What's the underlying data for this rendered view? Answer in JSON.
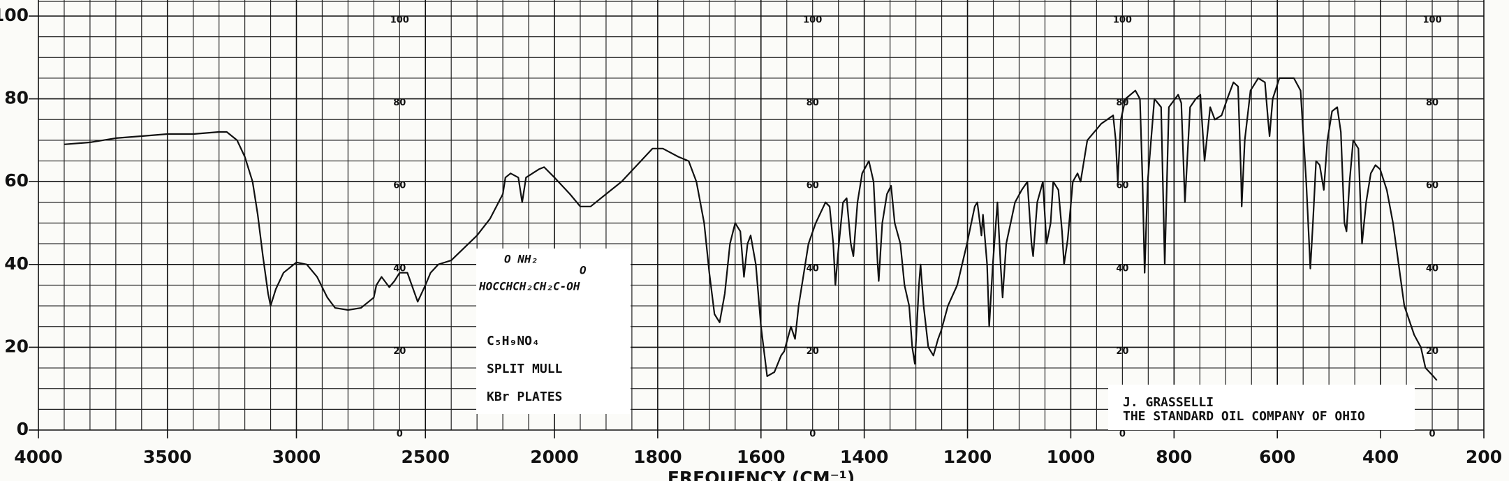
{
  "chart_data": {
    "type": "line",
    "x_label": "FREQUENCY (CM⁻¹)",
    "color": "#111111",
    "grid": true,
    "xlim": [
      4000,
      200
    ],
    "xticks": [
      4000,
      3500,
      3000,
      2500,
      2000,
      1800,
      1600,
      1400,
      1200,
      1000,
      800,
      600,
      400,
      200
    ],
    "ylim": [
      0,
      100
    ],
    "yticks": [
      0,
      20,
      40,
      60,
      80,
      100
    ],
    "inner_scale_columns": [
      2600,
      1500,
      900,
      300
    ],
    "annotations": {
      "structure_top": "O NH₂",
      "structure_top_right": "O",
      "structure": "HOCCHCH₂CH₂C-OH",
      "formula": "C₅H₉NO₄",
      "method": "SPLIT MULL",
      "plates": "KBr PLATES",
      "author": "J. GRASSELLI",
      "company": "THE STANDARD OIL COMPANY OF OHIO"
    },
    "x": [
      3900,
      3800,
      3700,
      3600,
      3500,
      3400,
      3300,
      3270,
      3230,
      3200,
      3170,
      3150,
      3130,
      3110,
      3100,
      3080,
      3050,
      3000,
      2960,
      2920,
      2880,
      2850,
      2800,
      2750,
      2700,
      2690,
      2670,
      2640,
      2620,
      2600,
      2570,
      2530,
      2500,
      2480,
      2450,
      2400,
      2350,
      2300,
      2250,
      2200,
      2190,
      2170,
      2140,
      2125,
      2110,
      2060,
      2040,
      2000,
      1970,
      1950,
      1930,
      1900,
      1870,
      1840,
      1810,
      1790,
      1760,
      1740,
      1725,
      1710,
      1700,
      1690,
      1680,
      1670,
      1660,
      1650,
      1640,
      1633,
      1626,
      1620,
      1610,
      1600,
      1588,
      1574,
      1561,
      1555,
      1542,
      1534,
      1527,
      1508,
      1494,
      1475,
      1467,
      1460,
      1456,
      1449,
      1441,
      1434,
      1426,
      1421,
      1413,
      1404,
      1391,
      1382,
      1374,
      1372,
      1365,
      1356,
      1348,
      1341,
      1330,
      1322,
      1313,
      1307,
      1302,
      1294,
      1291,
      1285,
      1276,
      1266,
      1257,
      1251,
      1238,
      1220,
      1201,
      1186,
      1181,
      1173,
      1170,
      1162,
      1158,
      1151,
      1142,
      1136,
      1132,
      1125,
      1108,
      1095,
      1084,
      1076,
      1073,
      1065,
      1054,
      1047,
      1039,
      1034,
      1024,
      1017,
      1013,
      1006,
      996,
      987,
      981,
      968,
      941,
      918,
      913,
      909,
      903,
      894,
      875,
      866,
      861,
      857,
      851,
      838,
      825,
      818,
      810,
      792,
      786,
      779,
      769,
      758,
      749,
      741,
      730,
      721,
      708,
      697,
      685,
      676,
      670,
      669,
      663,
      652,
      637,
      624,
      618,
      615,
      609,
      596,
      568,
      555,
      544,
      536,
      531,
      525,
      518,
      510,
      503,
      494,
      484,
      477,
      470,
      466,
      460,
      453,
      443,
      436,
      428,
      419,
      410,
      401,
      388,
      376,
      365,
      354,
      335,
      322,
      313,
      298,
      291
    ],
    "values": [
      69,
      69.5,
      70.5,
      71,
      71.5,
      71.5,
      72,
      72,
      70,
      66,
      60,
      52,
      42,
      33,
      30,
      34,
      38,
      40.5,
      40,
      37,
      32,
      29.5,
      29,
      29.5,
      32,
      35,
      37,
      34.5,
      36,
      38,
      38,
      31,
      35,
      38,
      40,
      41,
      44,
      47,
      51,
      57,
      61,
      62,
      61,
      55,
      61,
      63,
      63.5,
      61,
      57,
      54,
      54,
      57,
      60,
      64,
      68,
      68,
      66,
      65,
      60,
      50,
      38,
      28,
      26,
      33,
      45,
      50,
      48,
      37,
      45,
      47,
      40,
      25,
      13,
      14,
      18,
      19,
      25,
      22,
      30,
      45,
      50,
      55,
      54,
      45,
      35,
      45,
      55,
      56,
      45,
      42,
      55,
      62,
      65,
      60,
      40,
      36,
      50,
      57,
      59,
      50,
      45,
      35,
      30,
      20,
      16,
      35,
      40,
      30,
      20,
      18,
      22,
      24,
      30,
      35,
      45,
      54,
      55,
      47,
      52,
      40,
      25,
      40,
      55,
      40,
      32,
      45,
      55,
      58,
      60,
      45,
      42,
      55,
      60,
      45,
      50,
      60,
      58,
      48,
      40,
      46,
      60,
      62,
      60,
      70,
      74,
      76,
      70,
      60,
      75,
      80,
      82,
      80,
      60,
      38,
      60,
      80,
      78,
      40,
      78,
      81,
      79,
      55,
      78,
      80,
      81,
      65,
      78,
      75,
      76,
      80,
      84,
      83,
      60,
      54,
      70,
      82,
      85,
      84,
      75,
      71,
      80,
      85,
      85,
      82,
      60,
      39,
      50,
      65,
      64,
      58,
      70,
      77,
      78,
      72,
      50,
      48,
      60,
      70,
      68,
      45,
      55,
      62,
      64,
      63,
      58,
      50,
      40,
      30,
      23,
      20,
      15,
      13,
      12
    ]
  }
}
